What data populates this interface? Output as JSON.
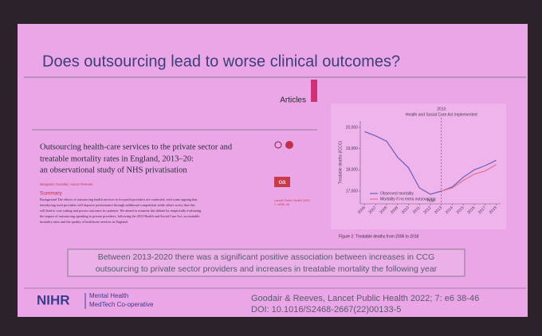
{
  "slide": {
    "title": "Does outsourcing lead to worse clinical outcomes?",
    "section": "Articles",
    "paper_title": [
      "Outsourcing health-care services to the private sector and",
      "treatable mortality rates in England, 2013–20:",
      "an observational study of NHS privatisation"
    ],
    "authors": "Benjamin Goodair, Aaron Reeves",
    "open_access": "oa",
    "summary_heading": "Summary",
    "summary_lines": [
      "Background The effects of outsourcing health services to for-profit providers are contested, with some arguing that",
      "introducing such providers will improve performance through additional competition while others worry that this",
      "will lead to cost-cutting and poorer outcomes for patients. We aimed to examine this debate by empirically evaluating",
      "the impact of outsourcing spending to private providers, following the 2012 Health and Social Care Act, on treatable",
      "mortality rates and the quality of healthcare services in England."
    ],
    "side_note": [
      "Lancet Public Health 2022;",
      "7: e638–46"
    ],
    "finding": [
      "Between 2013-2020 there was a significant positive association between increases in CCG",
      "outsourcing to private sector providers and increases in treatable mortality the following year"
    ],
    "logo": "NIHR",
    "logo_sub": [
      "Mental Health",
      "MedTech Co-operative"
    ],
    "citation": [
      "Goodair & Reeves, Lancet Public Health 2022; 7: e6 38-46",
      "DOI: 10.1016/S2468-2667(22)00133-5"
    ]
  },
  "figure": {
    "type": "line",
    "annotation": [
      "2013",
      "Health and Social Care Act implemented"
    ],
    "annotation_x": 2013,
    "x_label": "Year",
    "y_label": "Treatable deaths (ICCG)",
    "caption": "Figure 2: Treatable deaths from 2006 to 2018",
    "x": [
      2006,
      2007,
      2008,
      2009,
      2010,
      2011,
      2012,
      2013,
      2014,
      2015,
      2016,
      2017,
      2018
    ],
    "xlim": [
      2005.6,
      2018.4
    ],
    "ylim": [
      16400,
      20300
    ],
    "yticks": [
      {
        "value": 17000,
        "label": "17,000"
      },
      {
        "value": 18000,
        "label": "18,000"
      },
      {
        "value": 19000,
        "label": "19,000"
      },
      {
        "value": 20000,
        "label": "20,000"
      }
    ],
    "series": [
      {
        "name": "Observed mortality",
        "color": "#6b5fb5",
        "values": [
          19800,
          19600,
          19350,
          18600,
          18100,
          17150,
          16850,
          17000,
          17200,
          17650,
          18000,
          18200,
          18450
        ]
      },
      {
        "name": "Mortality if no extra outsourcing",
        "color": "#e0708c",
        "values": [
          null,
          null,
          null,
          null,
          null,
          null,
          null,
          17000,
          17150,
          17500,
          17800,
          17950,
          18250
        ]
      }
    ]
  }
}
